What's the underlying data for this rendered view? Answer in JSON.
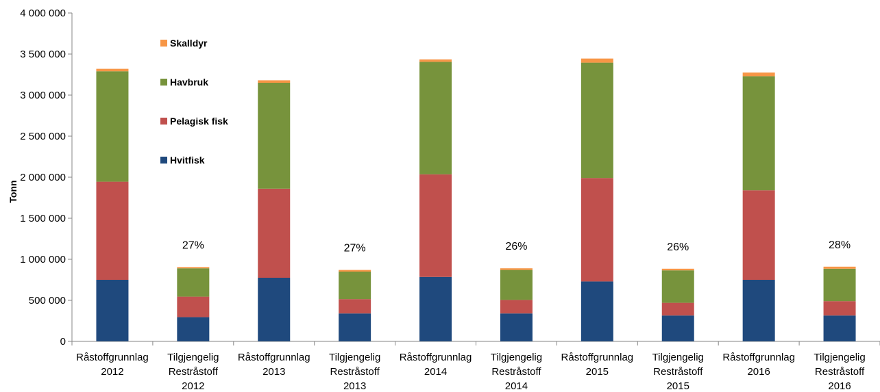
{
  "chart_data": {
    "type": "bar",
    "stacked": true,
    "ylabel": "Tonn",
    "ylim": [
      0,
      4000000
    ],
    "yticks": [
      0,
      500000,
      1000000,
      1500000,
      2000000,
      2500000,
      3000000,
      3500000,
      4000000
    ],
    "ytick_labels": [
      "0",
      "500 000",
      "1 000 000",
      "1 500 000",
      "2 000 000",
      "2 500 000",
      "3 000 000",
      "3 500 000",
      "4 000 000"
    ],
    "grid": false,
    "legend_placement": "top-left",
    "categories": [
      [
        "Råstoffgrunnlag",
        "2012"
      ],
      [
        "Tilgjengelig",
        "Restråstoff",
        "2012"
      ],
      [
        "Råstoffgrunnlag",
        "2013"
      ],
      [
        "Tilgjengelig",
        "Restråstoff",
        "2013"
      ],
      [
        "Råstoffgrunnlag",
        "2014"
      ],
      [
        "Tilgjengelig",
        "Restråstoff",
        "2014"
      ],
      [
        "Råstoffgrunnlag",
        "2015"
      ],
      [
        "Tilgjengelig",
        "Restråstoff",
        "2015"
      ],
      [
        "Råstoffgrunnlag",
        "2016"
      ],
      [
        "Tilgjengelig",
        "Restråstoff",
        "2016"
      ]
    ],
    "series": [
      {
        "name": "Hvitfisk",
        "color": "#1f497d",
        "values": [
          750000,
          295000,
          775000,
          340000,
          785000,
          340000,
          730000,
          315000,
          750000,
          315000
        ]
      },
      {
        "name": "Pelagisk fisk",
        "color": "#c0504d",
        "values": [
          1195000,
          250000,
          1085000,
          175000,
          1250000,
          165000,
          1260000,
          155000,
          1090000,
          175000
        ]
      },
      {
        "name": "Havbruk",
        "color": "#77933c",
        "values": [
          1345000,
          345000,
          1290000,
          335000,
          1370000,
          365000,
          1405000,
          395000,
          1390000,
          395000
        ]
      },
      {
        "name": "Skalldyr",
        "color": "#f79646",
        "values": [
          30000,
          15000,
          30000,
          20000,
          30000,
          20000,
          50000,
          20000,
          45000,
          25000
        ]
      }
    ],
    "data_labels": [
      "",
      "27%",
      "",
      "27%",
      "",
      "26%",
      "",
      "26%",
      "",
      "28%"
    ]
  }
}
